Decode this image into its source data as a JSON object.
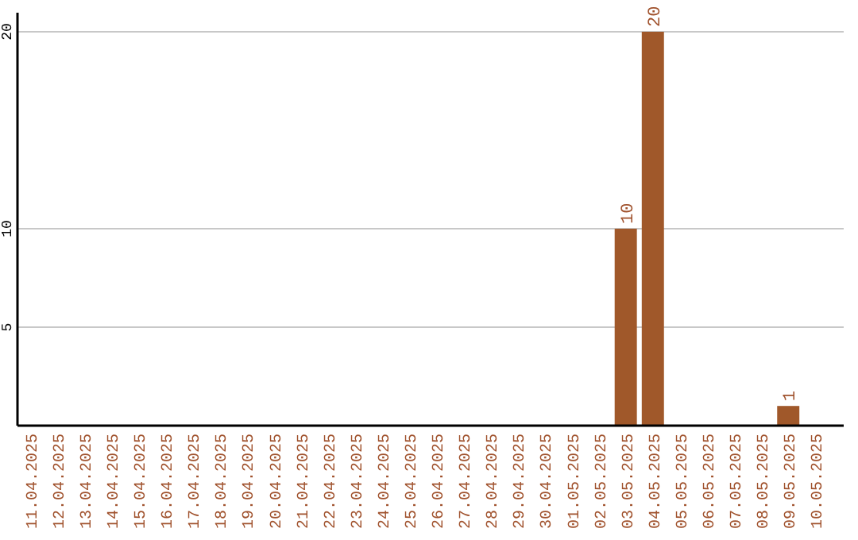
{
  "chart_data": {
    "type": "bar",
    "categories": [
      "11.04.2025",
      "12.04.2025",
      "13.04.2025",
      "14.04.2025",
      "15.04.2025",
      "16.04.2025",
      "17.04.2025",
      "18.04.2025",
      "19.04.2025",
      "20.04.2025",
      "21.04.2025",
      "22.04.2025",
      "23.04.2025",
      "24.04.2025",
      "25.04.2025",
      "26.04.2025",
      "27.04.2025",
      "28.04.2025",
      "29.04.2025",
      "30.04.2025",
      "01.05.2025",
      "02.05.2025",
      "03.05.2025",
      "04.05.2025",
      "05.05.2025",
      "06.05.2025",
      "07.05.2025",
      "08.05.2025",
      "09.05.2025",
      "10.05.2025"
    ],
    "values": [
      0,
      0,
      0,
      0,
      0,
      0,
      0,
      0,
      0,
      0,
      0,
      0,
      0,
      0,
      0,
      0,
      0,
      0,
      0,
      0,
      0,
      0,
      10,
      20,
      0,
      0,
      0,
      0,
      1,
      0
    ],
    "value_labels": [
      null,
      null,
      null,
      null,
      null,
      null,
      null,
      null,
      null,
      null,
      null,
      null,
      null,
      null,
      null,
      null,
      null,
      null,
      null,
      null,
      null,
      null,
      "10",
      "20",
      null,
      null,
      null,
      null,
      "1",
      null
    ],
    "color": "#a0582a",
    "ylim": [
      0,
      20
    ],
    "yticks": [
      5,
      10,
      20
    ],
    "grid": "y"
  }
}
